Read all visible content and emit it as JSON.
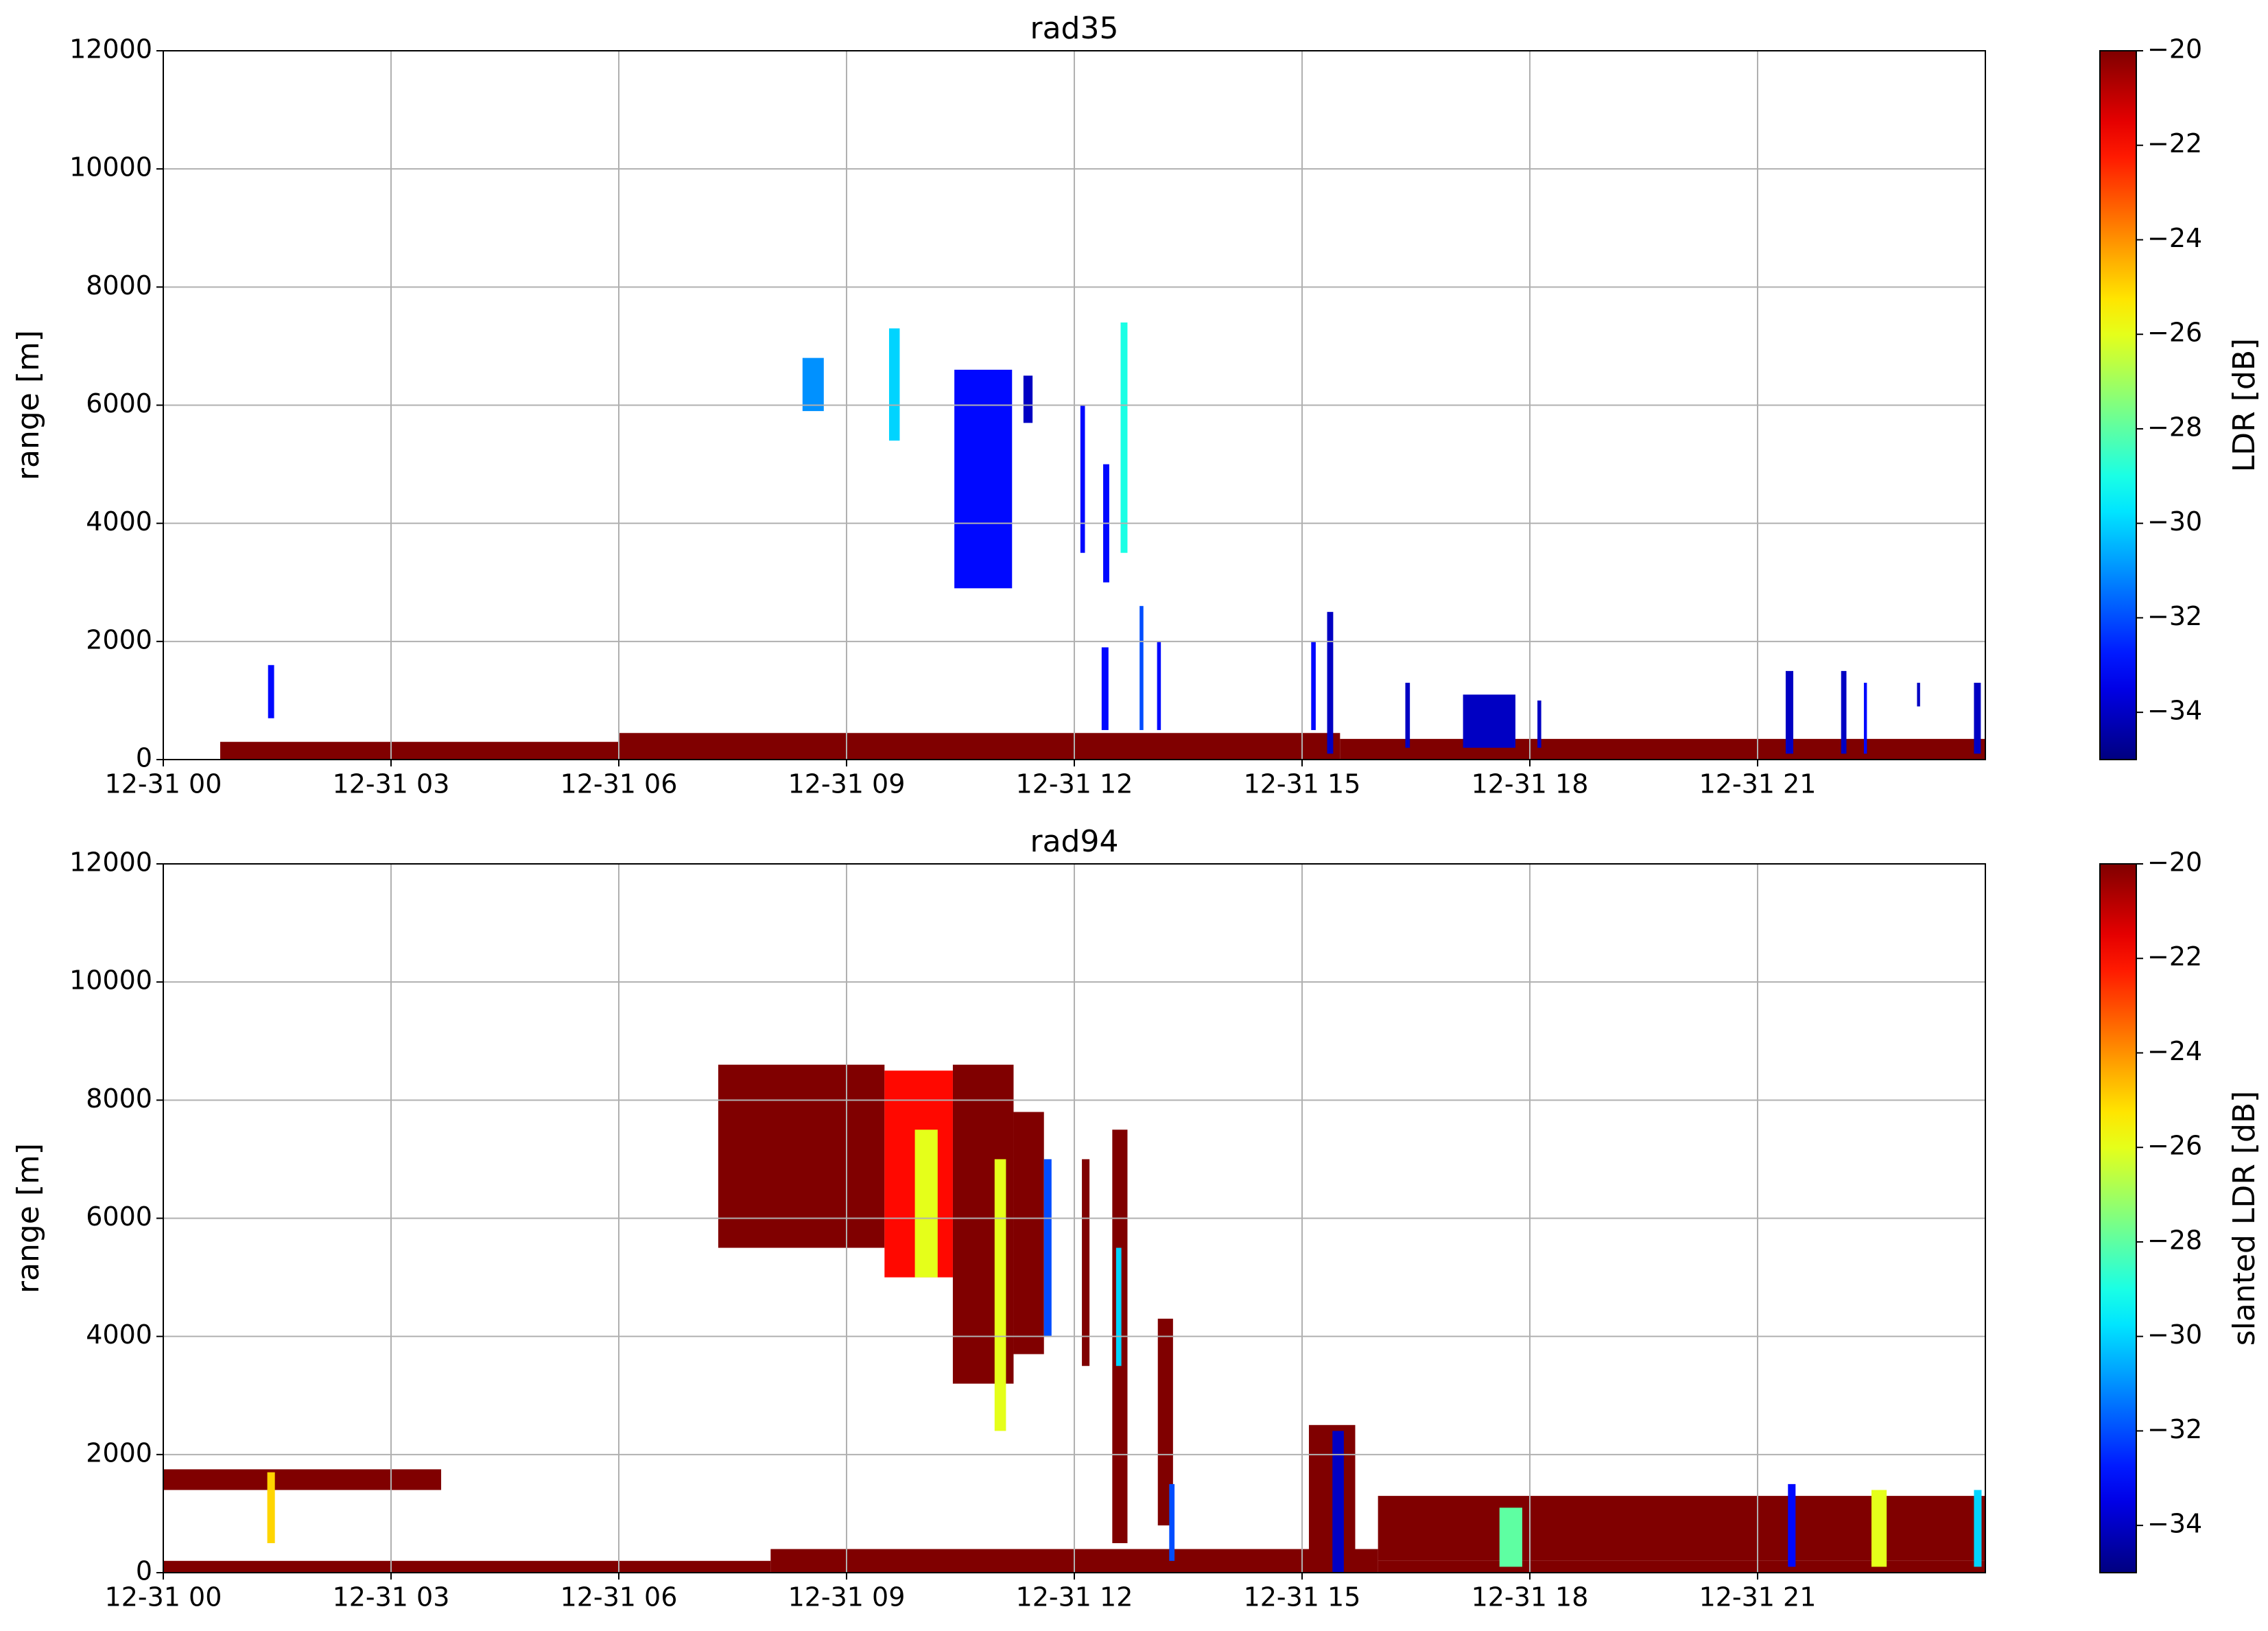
{
  "chart_data": [
    {
      "type": "heatmap",
      "title": "rad35",
      "ylabel": "range [m]",
      "colorbar_label": "LDR [dB]",
      "colormap": "jet",
      "grid": true,
      "xlim": [
        0,
        24
      ],
      "xticks": [
        {
          "value": 0,
          "label": "12-31 00"
        },
        {
          "value": 3,
          "label": "12-31 03"
        },
        {
          "value": 6,
          "label": "12-31 06"
        },
        {
          "value": 9,
          "label": "12-31 09"
        },
        {
          "value": 12,
          "label": "12-31 12"
        },
        {
          "value": 15,
          "label": "12-31 15"
        },
        {
          "value": 18,
          "label": "12-31 18"
        },
        {
          "value": 21,
          "label": "12-31 21"
        }
      ],
      "ylim": [
        0,
        12000
      ],
      "yticks": [
        0,
        2000,
        4000,
        6000,
        8000,
        10000,
        12000
      ],
      "clim": [
        -35,
        -20
      ],
      "cticks": [
        {
          "value": -20,
          "label": "−20"
        },
        {
          "value": -22,
          "label": "−22"
        },
        {
          "value": -24,
          "label": "−24"
        },
        {
          "value": -26,
          "label": "−26"
        },
        {
          "value": -28,
          "label": "−28"
        },
        {
          "value": -30,
          "label": "−30"
        },
        {
          "value": -32,
          "label": "−32"
        },
        {
          "value": -34,
          "label": "−34"
        }
      ],
      "cells": [
        {
          "x": [
            0.75,
            6.0
          ],
          "y": [
            0,
            300
          ],
          "value": -20
        },
        {
          "x": [
            6.0,
            15.5
          ],
          "y": [
            0,
            450
          ],
          "value": -20
        },
        {
          "x": [
            15.5,
            24
          ],
          "y": [
            0,
            350
          ],
          "value": -20
        },
        {
          "x": [
            1.38,
            1.46
          ],
          "y": [
            700,
            1600
          ],
          "value": -33
        },
        {
          "x": [
            8.42,
            8.7
          ],
          "y": [
            5900,
            6800
          ],
          "value": -31
        },
        {
          "x": [
            9.56,
            9.7
          ],
          "y": [
            5400,
            7300
          ],
          "value": -30
        },
        {
          "x": [
            10.42,
            11.18
          ],
          "y": [
            2900,
            6600
          ],
          "value": -33
        },
        {
          "x": [
            11.33,
            11.45
          ],
          "y": [
            5700,
            6500
          ],
          "value": -34
        },
        {
          "x": [
            12.08,
            12.14
          ],
          "y": [
            3500,
            6000
          ],
          "value": -33
        },
        {
          "x": [
            12.38,
            12.46
          ],
          "y": [
            3000,
            5000
          ],
          "value": -33
        },
        {
          "x": [
            12.61,
            12.7
          ],
          "y": [
            3500,
            7400
          ],
          "value": -29
        },
        {
          "x": [
            12.36,
            12.45
          ],
          "y": [
            500,
            1900
          ],
          "value": -33
        },
        {
          "x": [
            12.86,
            12.91
          ],
          "y": [
            500,
            2600
          ],
          "value": -32
        },
        {
          "x": [
            13.09,
            13.14
          ],
          "y": [
            500,
            2000
          ],
          "value": -33
        },
        {
          "x": [
            15.12,
            15.18
          ],
          "y": [
            500,
            2000
          ],
          "value": -33
        },
        {
          "x": [
            15.33,
            15.41
          ],
          "y": [
            100,
            2500
          ],
          "value": -34
        },
        {
          "x": [
            16.36,
            16.42
          ],
          "y": [
            200,
            1300
          ],
          "value": -34
        },
        {
          "x": [
            17.12,
            17.81
          ],
          "y": [
            200,
            1100
          ],
          "value": -34
        },
        {
          "x": [
            18.1,
            18.15
          ],
          "y": [
            200,
            1000
          ],
          "value": -34
        },
        {
          "x": [
            21.37,
            21.47
          ],
          "y": [
            100,
            1500
          ],
          "value": -34
        },
        {
          "x": [
            22.1,
            22.17
          ],
          "y": [
            100,
            1500
          ],
          "value": -34
        },
        {
          "x": [
            22.4,
            22.44
          ],
          "y": [
            100,
            1300
          ],
          "value": -33
        },
        {
          "x": [
            23.1,
            23.14
          ],
          "y": [
            900,
            1300
          ],
          "value": -34
        },
        {
          "x": [
            23.85,
            23.94
          ],
          "y": [
            100,
            1300
          ],
          "value": -34
        }
      ]
    },
    {
      "type": "heatmap",
      "title": "rad94",
      "ylabel": "range [m]",
      "colorbar_label": "slanted LDR [dB]",
      "colormap": "jet",
      "grid": true,
      "xlim": [
        0,
        24
      ],
      "xticks": [
        {
          "value": 0,
          "label": "12-31 00"
        },
        {
          "value": 3,
          "label": "12-31 03"
        },
        {
          "value": 6,
          "label": "12-31 06"
        },
        {
          "value": 9,
          "label": "12-31 09"
        },
        {
          "value": 12,
          "label": "12-31 12"
        },
        {
          "value": 15,
          "label": "12-31 15"
        },
        {
          "value": 18,
          "label": "12-31 18"
        },
        {
          "value": 21,
          "label": "12-31 21"
        }
      ],
      "ylim": [
        0,
        12000
      ],
      "yticks": [
        0,
        2000,
        4000,
        6000,
        8000,
        10000,
        12000
      ],
      "clim": [
        -35,
        -20
      ],
      "cticks": [
        {
          "value": -20,
          "label": "−20"
        },
        {
          "value": -22,
          "label": "−22"
        },
        {
          "value": -24,
          "label": "−24"
        },
        {
          "value": -26,
          "label": "−26"
        },
        {
          "value": -28,
          "label": "−28"
        },
        {
          "value": -30,
          "label": "−30"
        },
        {
          "value": -32,
          "label": "−32"
        },
        {
          "value": -34,
          "label": "−34"
        }
      ],
      "cells": [
        {
          "x": [
            0,
            8
          ],
          "y": [
            0,
            200
          ],
          "value": -20
        },
        {
          "x": [
            8,
            16
          ],
          "y": [
            0,
            400
          ],
          "value": -20
        },
        {
          "x": [
            16,
            24
          ],
          "y": [
            0,
            200
          ],
          "value": -20
        },
        {
          "x": [
            0,
            3.66
          ],
          "y": [
            1400,
            1750
          ],
          "value": -20
        },
        {
          "x": [
            1.37,
            1.47
          ],
          "y": [
            500,
            1700
          ],
          "value": -25
        },
        {
          "x": [
            7.31,
            9.5
          ],
          "y": [
            5500,
            8600
          ],
          "value": -20
        },
        {
          "x": [
            9.5,
            10.4
          ],
          "y": [
            5000,
            8500
          ],
          "value": -22
        },
        {
          "x": [
            9.9,
            10.2
          ],
          "y": [
            5000,
            7500
          ],
          "value": -26
        },
        {
          "x": [
            10.4,
            11.2
          ],
          "y": [
            3200,
            8600
          ],
          "value": -20
        },
        {
          "x": [
            10.95,
            11.1
          ],
          "y": [
            2400,
            7000
          ],
          "value": -26
        },
        {
          "x": [
            11.2,
            11.6
          ],
          "y": [
            3700,
            7800
          ],
          "value": -20
        },
        {
          "x": [
            11.6,
            11.7
          ],
          "y": [
            4000,
            7000
          ],
          "value": -32
        },
        {
          "x": [
            12.1,
            12.2
          ],
          "y": [
            3500,
            7000
          ],
          "value": -20
        },
        {
          "x": [
            12.5,
            12.7
          ],
          "y": [
            500,
            7500
          ],
          "value": -20
        },
        {
          "x": [
            12.55,
            12.62
          ],
          "y": [
            3500,
            5500
          ],
          "value": -30
        },
        {
          "x": [
            13.1,
            13.3
          ],
          "y": [
            800,
            4300
          ],
          "value": -20
        },
        {
          "x": [
            13.25,
            13.32
          ],
          "y": [
            200,
            1500
          ],
          "value": -32
        },
        {
          "x": [
            15.09,
            15.7
          ],
          "y": [
            0,
            2500
          ],
          "value": -20
        },
        {
          "x": [
            15.4,
            15.55
          ],
          "y": [
            0,
            2400
          ],
          "value": -34
        },
        {
          "x": [
            16.0,
            24
          ],
          "y": [
            200,
            1300
          ],
          "value": -20
        },
        {
          "x": [
            17.6,
            17.9
          ],
          "y": [
            100,
            1100
          ],
          "value": -28
        },
        {
          "x": [
            21.4,
            21.5
          ],
          "y": [
            100,
            1500
          ],
          "value": -33
        },
        {
          "x": [
            22.5,
            22.7
          ],
          "y": [
            100,
            1400
          ],
          "value": -26
        },
        {
          "x": [
            23.85,
            23.95
          ],
          "y": [
            100,
            1400
          ],
          "value": -30
        }
      ]
    }
  ]
}
